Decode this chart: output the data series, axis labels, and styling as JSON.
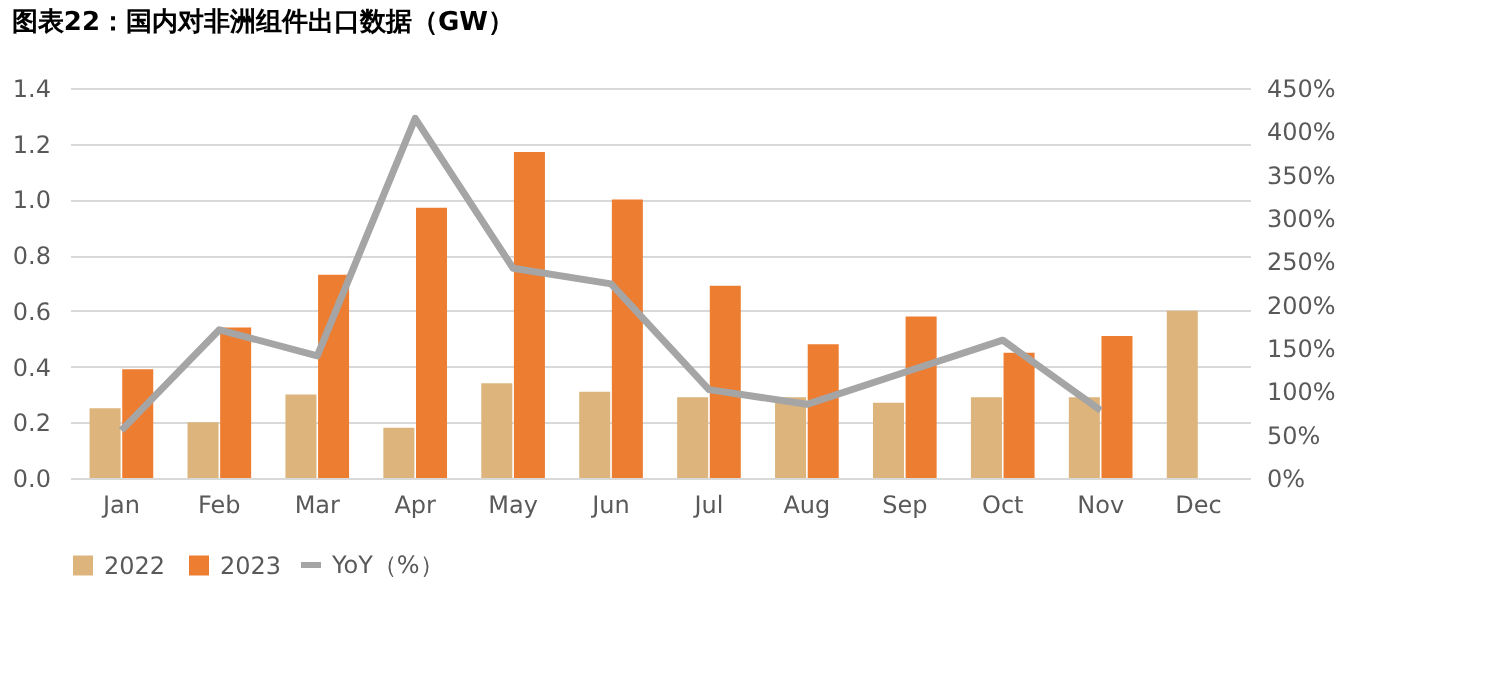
{
  "chart_data": {
    "type": "bar",
    "title": "图表22：国内对非洲组件出口数据（GW）",
    "categories": [
      "Jan",
      "Feb",
      "Mar",
      "Apr",
      "May",
      "Jun",
      "Jul",
      "Aug",
      "Sep",
      "Oct",
      "Nov",
      "Dec"
    ],
    "series": [
      {
        "name": "2022",
        "color": "#dcb47c",
        "values": [
          0.25,
          0.2,
          0.3,
          0.18,
          0.34,
          0.31,
          0.29,
          0.29,
          0.27,
          0.29,
          0.29,
          0.6
        ]
      },
      {
        "name": "2023",
        "color": "#ed7d31",
        "values": [
          0.39,
          0.54,
          0.73,
          0.97,
          1.17,
          1.0,
          0.69,
          0.48,
          0.58,
          0.45,
          0.51,
          null
        ]
      },
      {
        "name": "YoY（%）",
        "color": "#a5a5a5",
        "type": "line",
        "axis": "y2",
        "values": [
          55,
          171,
          141,
          415,
          242,
          224,
          102,
          85,
          122,
          159,
          78,
          null
        ]
      }
    ],
    "ylim": [
      0,
      1.4
    ],
    "yticks": [
      {
        "value": 0,
        "label": "0.0"
      },
      0.2,
      0.4,
      0.6,
      0.8,
      {
        "value": 1,
        "label": "1.0"
      },
      1.2,
      1.4
    ],
    "y2lim": [
      0,
      450
    ],
    "y2ticks": [
      {
        "value": 0,
        "label": "0%"
      },
      {
        "value": 50,
        "label": "50%"
      },
      {
        "value": 100,
        "label": "100%"
      },
      {
        "value": 150,
        "label": "150%"
      },
      {
        "value": 200,
        "label": "200%"
      },
      {
        "value": 250,
        "label": "250%"
      },
      {
        "value": 300,
        "label": "300%"
      },
      {
        "value": 350,
        "label": "350%"
      },
      {
        "value": 400,
        "label": "400%"
      },
      {
        "value": 450,
        "label": "450%"
      }
    ],
    "grid": "y",
    "legend": "bottom",
    "marker": "none"
  }
}
